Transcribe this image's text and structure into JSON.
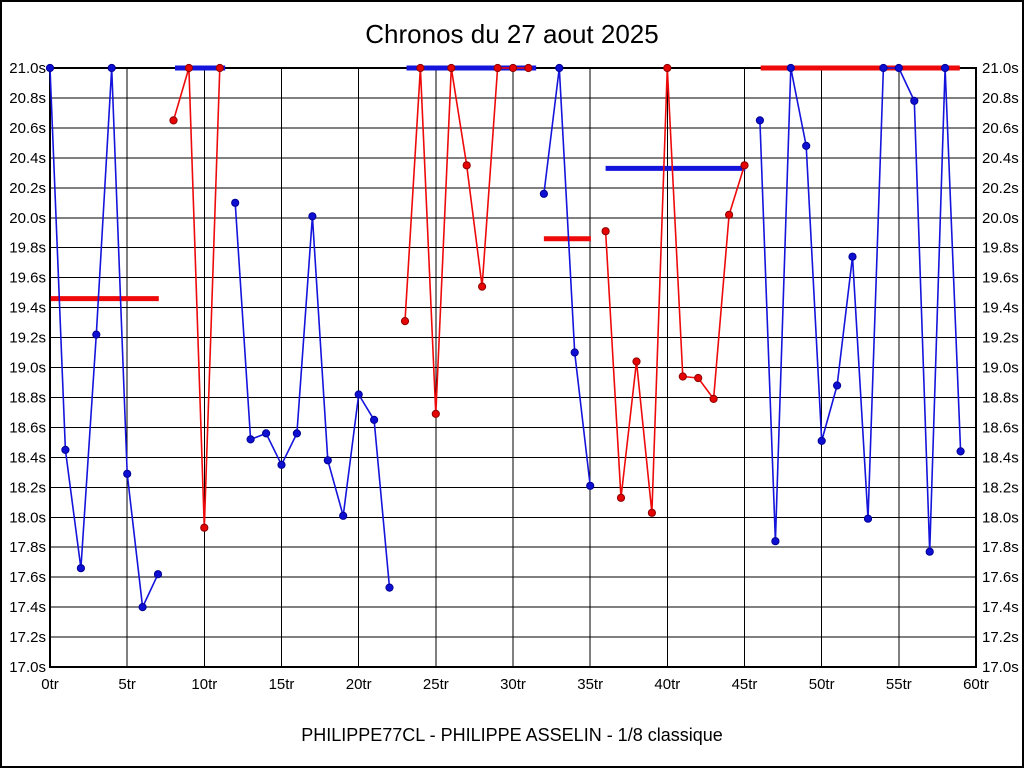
{
  "title": "Chronos du 27 aout 2025",
  "footer": "PHILIPPE77CL - PHILIPPE ASSELIN - 1/8 classique",
  "chart_data": {
    "type": "line",
    "title": "Chronos du 27 aout 2025",
    "subtitle": "PHILIPPE77CL - PHILIPPE ASSELIN - 1/8 classique",
    "x_unit": "tr",
    "y_unit": "s",
    "xlim": [
      0,
      60
    ],
    "ylim": [
      17.0,
      21.0
    ],
    "x_ticks": [
      0,
      5,
      10,
      15,
      20,
      25,
      30,
      35,
      40,
      45,
      50,
      55,
      60
    ],
    "x_tick_labels": [
      "0tr",
      "5tr",
      "10tr",
      "15tr",
      "20tr",
      "25tr",
      "30tr",
      "35tr",
      "40tr",
      "45tr",
      "50tr",
      "55tr",
      "60tr"
    ],
    "y_ticks": [
      21.0,
      20.8,
      20.6,
      20.4,
      20.2,
      20.0,
      19.8,
      19.6,
      19.4,
      19.2,
      19.0,
      18.8,
      18.6,
      18.4,
      18.2,
      18.0,
      17.8,
      17.6,
      17.4,
      17.2,
      17.0
    ],
    "y_tick_labels": [
      "21.0s",
      "20.8s",
      "20.6s",
      "20.4s",
      "20.2s",
      "20.0s",
      "19.8s",
      "19.6s",
      "19.4s",
      "19.2s",
      "19.0s",
      "18.8s",
      "18.6s",
      "18.4s",
      "18.2s",
      "18.0s",
      "17.8s",
      "17.6s",
      "17.4s",
      "17.2s",
      "17.0s"
    ],
    "grid": true,
    "legend_position": "none",
    "colors": {
      "blue_line": "#1414dc",
      "blue_marker": "#0f0fd2",
      "blue_marker_edge": "#000096",
      "red_line": "#ee0a0a",
      "red_marker": "#e60505",
      "red_marker_edge": "#8c0000",
      "grid_color": "#000000"
    },
    "series": [
      {
        "name": "blue-driver-laps",
        "color_key": "blue",
        "segments": [
          {
            "start_lap": 0,
            "values": [
              21.0,
              18.45,
              17.66,
              19.22,
              21.0,
              18.29,
              17.4,
              17.62
            ]
          },
          {
            "start_lap": 12,
            "values": [
              20.1,
              18.52,
              18.56,
              18.35,
              18.56,
              20.01,
              18.38,
              18.01,
              18.82,
              18.65,
              17.53
            ]
          },
          {
            "start_lap": 32,
            "values": [
              20.16,
              21.0,
              19.1,
              18.21
            ]
          },
          {
            "start_lap": 46,
            "values": [
              20.65,
              17.84,
              21.0,
              20.48,
              18.51,
              18.88,
              19.74,
              17.99,
              21.0,
              21.0,
              20.78,
              17.77,
              21.0,
              18.44
            ]
          }
        ]
      },
      {
        "name": "red-driver-laps",
        "color_key": "red",
        "segments": [
          {
            "start_lap": 8,
            "values": [
              20.65,
              21.0,
              17.93,
              21.0
            ]
          },
          {
            "start_lap": 23,
            "values": [
              19.31,
              21.0,
              18.69,
              21.0,
              20.35,
              19.54,
              21.0,
              21.0,
              21.0
            ]
          },
          {
            "start_lap": 36,
            "values": [
              19.91,
              18.13,
              19.04,
              18.03,
              21.0,
              18.94,
              18.93,
              18.79,
              20.02,
              20.35
            ]
          }
        ]
      }
    ],
    "segment_average_bars": [
      {
        "color_key": "red",
        "value": 19.46,
        "from": 0.05,
        "to": 7.05
      },
      {
        "color_key": "blue",
        "value": 21.0,
        "from": 8.1,
        "to": 11.35
      },
      {
        "color_key": "blue",
        "value": 21.0,
        "from": 23.1,
        "to": 31.5
      },
      {
        "color_key": "red",
        "value": 19.86,
        "from": 32.0,
        "to": 35.05
      },
      {
        "color_key": "blue",
        "value": 20.33,
        "from": 36.0,
        "to": 45.05
      },
      {
        "color_key": "red",
        "value": 21.0,
        "from": 46.05,
        "to": 58.95
      }
    ]
  }
}
